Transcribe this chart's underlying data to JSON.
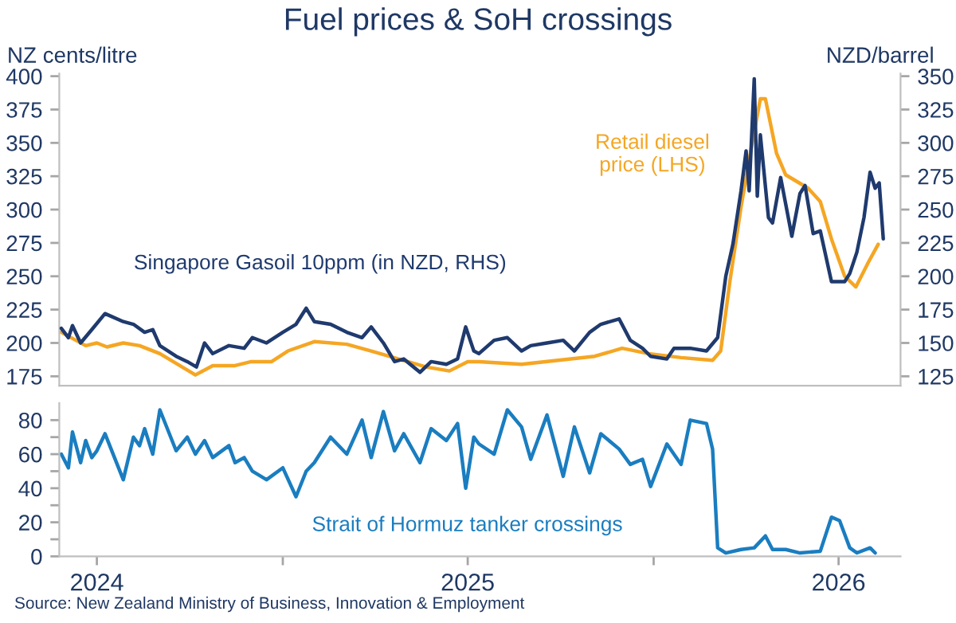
{
  "chart_data": [
    {
      "type": "line",
      "title": "Fuel prices & SoH crossings",
      "ylabel": "NZ cents/litre",
      "y2label": "NZD/barrel",
      "xlim": [
        "2024-05-26",
        "2026-09-01"
      ],
      "ylim": [
        168,
        402
      ],
      "yticks": [
        175,
        200,
        225,
        250,
        275,
        300,
        325,
        350,
        375,
        400
      ],
      "y2lim": [
        118,
        352
      ],
      "y2ticks": [
        125,
        150,
        175,
        200,
        225,
        250,
        275,
        300,
        325,
        350
      ],
      "tick_labels": "y",
      "series": [
        {
          "name": "Singapore Gasoil 10ppm (in NZD, RHS)",
          "color": "#1f3a6e",
          "axis": "y2",
          "x": [
            "2024-05-28",
            "2024-06-04",
            "2024-06-08",
            "2024-06-16",
            "2024-06-27",
            "2024-07-10",
            "2024-07-28",
            "2024-08-07",
            "2024-08-18",
            "2024-08-26",
            "2024-09-02",
            "2024-09-18",
            "2024-09-29",
            "2024-10-08",
            "2024-10-16",
            "2024-10-24",
            "2024-11-09",
            "2024-11-24",
            "2024-12-02",
            "2024-12-16",
            "2025-01-01",
            "2025-01-14",
            "2025-01-24",
            "2025-02-01",
            "2025-02-17",
            "2025-03-05",
            "2025-03-20",
            "2025-03-29",
            "2025-04-10",
            "2025-04-21",
            "2025-04-30",
            "2025-05-16",
            "2025-05-27",
            "2025-06-11",
            "2025-06-22",
            "2025-06-30",
            "2025-07-08",
            "2025-07-13",
            "2025-07-28",
            "2025-08-10",
            "2025-08-24",
            "2025-09-02",
            "2025-09-18",
            "2025-10-04",
            "2025-10-15",
            "2025-10-30",
            "2025-11-10",
            "2025-11-28",
            "2025-12-09",
            "2025-12-21",
            "2025-12-29",
            "2026-01-14",
            "2026-01-21",
            "2026-02-06",
            "2026-02-22",
            "2026-03-05",
            "2026-03-13",
            "2026-03-20",
            "2026-03-28",
            "2026-04-02",
            "2026-04-05",
            "2026-04-10",
            "2026-04-13",
            "2026-04-16",
            "2026-04-24",
            "2026-04-28",
            "2026-05-06",
            "2026-05-17",
            "2026-05-25",
            "2026-05-30",
            "2026-06-07",
            "2026-06-14",
            "2026-06-25",
            "2026-07-08",
            "2026-07-13",
            "2026-07-20",
            "2026-07-27",
            "2026-08-02",
            "2026-08-07",
            "2026-08-11",
            "2026-08-15"
          ],
          "values": [
            161,
            154,
            163,
            150,
            160,
            172,
            166,
            164,
            158,
            160,
            148,
            140,
            136,
            132,
            150,
            142,
            148,
            146,
            154,
            150,
            158,
            164,
            176,
            166,
            164,
            158,
            154,
            162,
            150,
            136,
            138,
            128,
            136,
            134,
            138,
            162,
            144,
            142,
            152,
            154,
            144,
            148,
            150,
            152,
            144,
            158,
            164,
            168,
            152,
            146,
            140,
            138,
            146,
            146,
            144,
            154,
            200,
            224,
            264,
            294,
            264,
            348,
            260,
            306,
            244,
            240,
            274,
            230,
            262,
            268,
            232,
            234,
            196,
            196,
            202,
            218,
            244,
            278,
            266,
            270,
            228
          ]
        },
        {
          "name": "Retail diesel\nprice (LHS)",
          "color": "#f5a623",
          "axis": "y",
          "x": [
            "2024-05-28",
            "2024-06-21",
            "2024-07-02",
            "2024-07-12",
            "2024-07-28",
            "2024-08-13",
            "2024-09-02",
            "2024-10-07",
            "2024-10-24",
            "2024-11-15",
            "2024-12-01",
            "2024-12-21",
            "2025-01-06",
            "2025-02-01",
            "2025-03-05",
            "2025-03-29",
            "2025-04-25",
            "2025-05-22",
            "2025-06-14",
            "2025-07-02",
            "2025-07-13",
            "2025-08-24",
            "2025-09-29",
            "2025-11-04",
            "2025-12-01",
            "2025-12-27",
            "2026-01-28",
            "2026-02-28",
            "2026-03-08",
            "2026-03-17",
            "2026-03-28",
            "2026-04-08",
            "2026-04-16",
            "2026-04-21",
            "2026-05-02",
            "2026-05-11",
            "2026-06-02",
            "2026-06-14",
            "2026-06-25",
            "2026-07-08",
            "2026-07-19",
            "2026-07-31",
            "2026-08-10"
          ],
          "values": [
            208,
            198,
            200,
            197,
            200,
            198,
            192,
            176,
            183,
            183,
            186,
            186,
            194,
            201,
            199,
            194,
            188,
            182,
            179,
            186,
            186,
            184,
            187,
            190,
            196,
            192,
            189,
            187,
            194,
            246,
            302,
            350,
            383,
            383,
            342,
            326,
            316,
            306,
            278,
            250,
            242,
            260,
            274
          ]
        }
      ]
    },
    {
      "type": "line",
      "xlim": [
        "2024-05-26",
        "2026-09-01"
      ],
      "ylim": [
        0,
        90
      ],
      "yticks": [
        0,
        {
          "value": 10,
          "label": null
        },
        20,
        {
          "value": 30,
          "label": null
        },
        40,
        {
          "value": 50,
          "label": null
        },
        60,
        {
          "value": 70,
          "label": null
        },
        80
      ],
      "xticks": [
        {
          "value": "2024-07-02",
          "label": "2024"
        },
        {
          "value": "2025-01-01",
          "label": null
        },
        {
          "value": "2025-07-02",
          "label": "2025"
        },
        {
          "value": "2026-01-01",
          "label": null
        },
        {
          "value": "2026-07-02",
          "label": "2026"
        }
      ],
      "annotations": [
        "Source: New Zealand Ministry of Business, Innovation & Employment"
      ],
      "series": [
        {
          "name": "Strait of Hormuz tanker crossings",
          "color": "#1a7dc0",
          "x": [
            "2024-05-28",
            "2024-06-04",
            "2024-06-08",
            "2024-06-16",
            "2024-06-21",
            "2024-06-27",
            "2024-07-02",
            "2024-07-10",
            "2024-07-28",
            "2024-08-07",
            "2024-08-13",
            "2024-08-18",
            "2024-08-26",
            "2024-09-02",
            "2024-09-18",
            "2024-09-29",
            "2024-10-07",
            "2024-10-16",
            "2024-10-24",
            "2024-11-09",
            "2024-11-15",
            "2024-11-24",
            "2024-12-02",
            "2024-12-16",
            "2025-01-01",
            "2025-01-14",
            "2025-01-24",
            "2025-02-01",
            "2025-02-17",
            "2025-03-05",
            "2025-03-20",
            "2025-03-29",
            "2025-04-10",
            "2025-04-21",
            "2025-04-30",
            "2025-05-16",
            "2025-05-27",
            "2025-06-11",
            "2025-06-22",
            "2025-06-30",
            "2025-07-08",
            "2025-07-13",
            "2025-07-28",
            "2025-08-10",
            "2025-08-24",
            "2025-09-02",
            "2025-09-18",
            "2025-10-04",
            "2025-10-15",
            "2025-10-30",
            "2025-11-10",
            "2025-11-28",
            "2025-12-09",
            "2025-12-21",
            "2025-12-29",
            "2026-01-14",
            "2026-01-28",
            "2026-02-06",
            "2026-02-22",
            "2026-02-28",
            "2026-03-05",
            "2026-03-13",
            "2026-03-28",
            "2026-04-10",
            "2026-04-21",
            "2026-04-28",
            "2026-05-11",
            "2026-05-25",
            "2026-06-14",
            "2026-06-25",
            "2026-07-03",
            "2026-07-08",
            "2026-07-13",
            "2026-07-20",
            "2026-08-02",
            "2026-08-07"
          ],
          "values": [
            60,
            52,
            73,
            55,
            68,
            58,
            62,
            72,
            45,
            70,
            65,
            75,
            60,
            86,
            62,
            70,
            60,
            68,
            58,
            65,
            55,
            58,
            50,
            45,
            52,
            35,
            50,
            55,
            70,
            60,
            80,
            58,
            85,
            62,
            72,
            55,
            75,
            68,
            78,
            40,
            70,
            66,
            60,
            86,
            76,
            57,
            83,
            47,
            76,
            49,
            72,
            63,
            54,
            57,
            41,
            66,
            54,
            80,
            78,
            63,
            5,
            2,
            4,
            5,
            12,
            4,
            4,
            2,
            3,
            23,
            21,
            13,
            5,
            2,
            5,
            2
          ]
        }
      ]
    }
  ]
}
